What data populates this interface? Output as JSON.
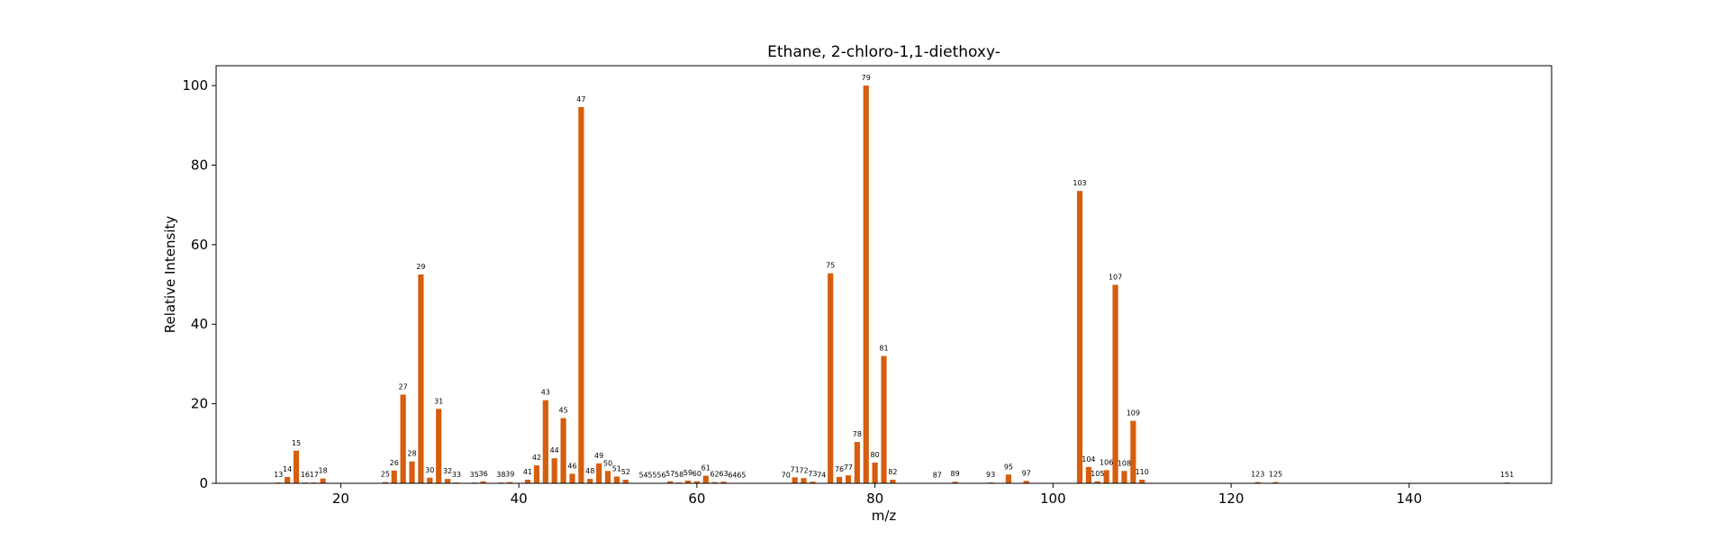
{
  "chart_data": {
    "type": "bar",
    "title": "Ethane, 2-chloro-1,1-diethoxy-",
    "xlabel": "m/z",
    "ylabel": "Relative Intensity",
    "xlim": [
      6,
      156
    ],
    "ylim": [
      0,
      105
    ],
    "xticks": [
      20,
      40,
      60,
      80,
      100,
      120,
      140
    ],
    "yticks": [
      0,
      20,
      40,
      60,
      80,
      100
    ],
    "grid": false,
    "bar_color": "#d55e0f",
    "x": [
      13,
      14,
      15,
      16,
      17,
      18,
      25,
      26,
      27,
      28,
      29,
      30,
      31,
      32,
      33,
      35,
      36,
      38,
      39,
      41,
      42,
      43,
      44,
      45,
      46,
      47,
      48,
      49,
      50,
      51,
      52,
      54,
      55,
      56,
      57,
      58,
      59,
      60,
      61,
      62,
      63,
      64,
      65,
      70,
      71,
      72,
      73,
      74,
      75,
      76,
      77,
      78,
      79,
      80,
      81,
      82,
      87,
      89,
      93,
      95,
      97,
      103,
      104,
      105,
      106,
      107,
      108,
      109,
      110,
      123,
      125,
      151
    ],
    "values": [
      0.2,
      1.6,
      8.2,
      0.2,
      0.2,
      1.2,
      0.3,
      3.2,
      22.3,
      5.5,
      52.5,
      1.4,
      18.7,
      1.1,
      0.2,
      0.2,
      0.5,
      0.2,
      0.3,
      0.9,
      4.5,
      20.9,
      6.3,
      16.4,
      2.4,
      94.6,
      1.1,
      5.0,
      3.1,
      1.7,
      0.9,
      0.1,
      0.1,
      0.1,
      0.5,
      0.2,
      0.7,
      0.5,
      1.9,
      0.3,
      0.4,
      0.1,
      0.1,
      0.1,
      1.5,
      1.3,
      0.4,
      0.1,
      52.8,
      1.6,
      2.0,
      10.4,
      100.0,
      5.2,
      32.0,
      0.9,
      0.1,
      0.4,
      0.2,
      2.2,
      0.6,
      73.5,
      4.1,
      0.5,
      3.3,
      49.9,
      3.1,
      15.7,
      0.9,
      0.3,
      0.3,
      0.2
    ]
  }
}
